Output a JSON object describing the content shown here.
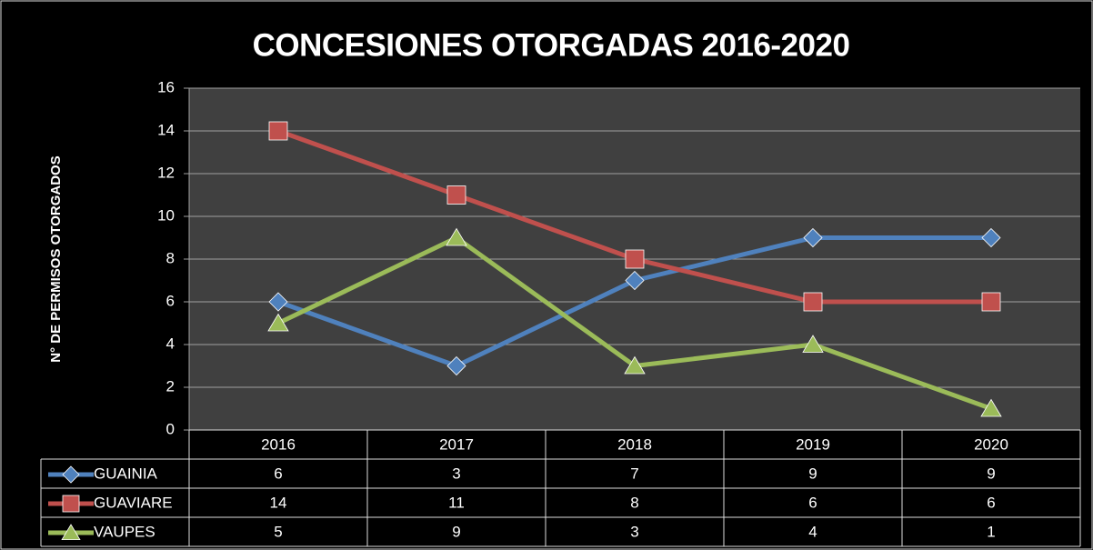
{
  "chart_data": {
    "type": "line",
    "title": "CONCESIONES OTORGADAS 2016-2020",
    "y_label": "N° DE PERMISOS OTORGADOS",
    "categories": [
      "2016",
      "2017",
      "2018",
      "2019",
      "2020"
    ],
    "series": [
      {
        "name": "GUAINIA",
        "color": "#4f81bd",
        "marker": "diamond",
        "values": [
          6,
          3,
          7,
          9,
          9
        ]
      },
      {
        "name": "GUAVIARE",
        "color": "#c0504d",
        "marker": "square",
        "values": [
          14,
          11,
          8,
          6,
          6
        ]
      },
      {
        "name": "VAUPES",
        "color": "#9bbb59",
        "marker": "triangle",
        "values": [
          5,
          9,
          3,
          4,
          1
        ]
      }
    ],
    "ylim": [
      0,
      16
    ],
    "yticks": [
      0,
      2,
      4,
      6,
      8,
      10,
      12,
      14,
      16
    ],
    "grid": true,
    "data_table": true
  }
}
